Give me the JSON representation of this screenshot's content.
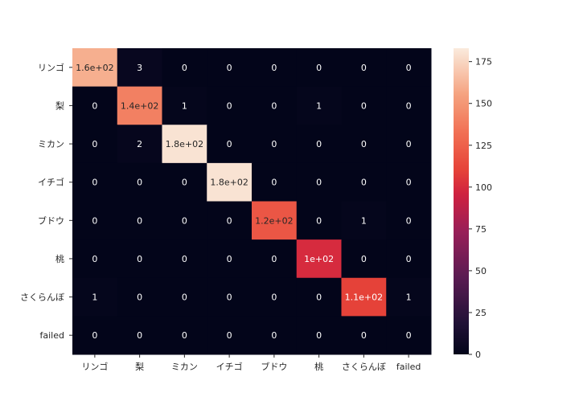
{
  "chart_data": {
    "type": "heatmap",
    "title": "",
    "xlabel": "",
    "ylabel": "",
    "x_categories": [
      "リンゴ",
      "梨",
      "ミカン",
      "イチゴ",
      "ブドウ",
      "桃",
      "さくらんぼ",
      "failed"
    ],
    "y_categories": [
      "リンゴ",
      "梨",
      "ミカン",
      "イチゴ",
      "ブドウ",
      "桃",
      "さくらんぼ",
      "failed"
    ],
    "values": [
      [
        160,
        3,
        0,
        0,
        0,
        0,
        0,
        0
      ],
      [
        0,
        140,
        1,
        0,
        0,
        1,
        0,
        0
      ],
      [
        0,
        2,
        180,
        0,
        0,
        0,
        0,
        0
      ],
      [
        0,
        0,
        0,
        180,
        0,
        0,
        0,
        0
      ],
      [
        0,
        0,
        0,
        0,
        120,
        0,
        1,
        0
      ],
      [
        0,
        0,
        0,
        0,
        0,
        100,
        0,
        0
      ],
      [
        1,
        0,
        0,
        0,
        0,
        0,
        110,
        1
      ],
      [
        0,
        0,
        0,
        0,
        0,
        0,
        0,
        0
      ]
    ],
    "annotations": [
      [
        "1.6e+02",
        "3",
        "0",
        "0",
        "0",
        "0",
        "0",
        "0"
      ],
      [
        "0",
        "1.4e+02",
        "1",
        "0",
        "0",
        "1",
        "0",
        "0"
      ],
      [
        "0",
        "2",
        "1.8e+02",
        "0",
        "0",
        "0",
        "0",
        "0"
      ],
      [
        "0",
        "0",
        "0",
        "1.8e+02",
        "0",
        "0",
        "0",
        "0"
      ],
      [
        "0",
        "0",
        "0",
        "0",
        "1.2e+02",
        "0",
        "1",
        "0"
      ],
      [
        "0",
        "0",
        "0",
        "0",
        "0",
        "1e+02",
        "0",
        "0"
      ],
      [
        "1",
        "0",
        "0",
        "0",
        "0",
        "0",
        "1.1e+02",
        "1"
      ],
      [
        "0",
        "0",
        "0",
        "0",
        "0",
        "0",
        "0",
        "0"
      ]
    ],
    "colorbar": {
      "min": 0,
      "max": 183,
      "ticks": [
        0,
        25,
        50,
        75,
        100,
        125,
        150,
        175
      ],
      "colormap": "rocket"
    }
  }
}
